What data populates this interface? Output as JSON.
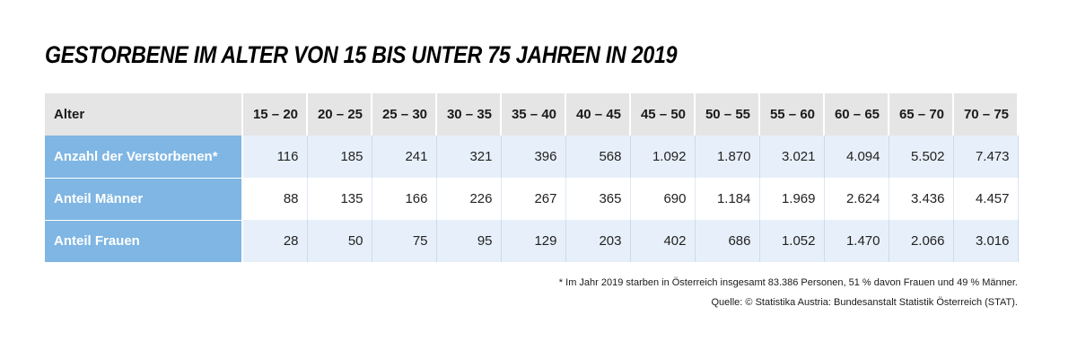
{
  "title": "GESTORBENE IM ALTER VON 15 BIS UNTER 75 JAHREN IN 2019",
  "colors": {
    "header_bg": "#e5e5e5",
    "row_label_bg": "#7fb6e3",
    "row_label_text": "#ffffff",
    "zebra_bg": "#e7f0fa",
    "plain_bg": "#ffffff"
  },
  "chart_data": {
    "type": "table",
    "title": "GESTORBENE IM ALTER VON 15 BIS UNTER 75 JAHREN IN 2019",
    "header": {
      "label": "Alter",
      "columns": [
        "15 – 20",
        "20 – 25",
        "25 – 30",
        "30 – 35",
        "35 – 40",
        "40 – 45",
        "45 – 50",
        "50 – 55",
        "55 – 60",
        "60 – 65",
        "65 – 70",
        "70 – 75"
      ]
    },
    "rows": [
      {
        "label": "Anzahl der Verstorbenen*",
        "values": [
          "116",
          "185",
          "241",
          "321",
          "396",
          "568",
          "1.092",
          "1.870",
          "3.021",
          "4.094",
          "5.502",
          "7.473"
        ]
      },
      {
        "label": "Anteil Männer",
        "values": [
          "88",
          "135",
          "166",
          "226",
          "267",
          "365",
          "690",
          "1.184",
          "1.969",
          "2.624",
          "3.436",
          "4.457"
        ]
      },
      {
        "label": "Anteil Frauen",
        "values": [
          "28",
          "50",
          "75",
          "95",
          "129",
          "203",
          "402",
          "686",
          "1.052",
          "1.470",
          "2.066",
          "3.016"
        ]
      }
    ]
  },
  "footnote": "* Im Jahr 2019 starben in Österreich insgesamt 83.386 Personen, 51 % davon Frauen und 49 % Männer.",
  "source": "Quelle: © Statistika Austria: Bundesanstalt Statistik Österreich (STAT)."
}
